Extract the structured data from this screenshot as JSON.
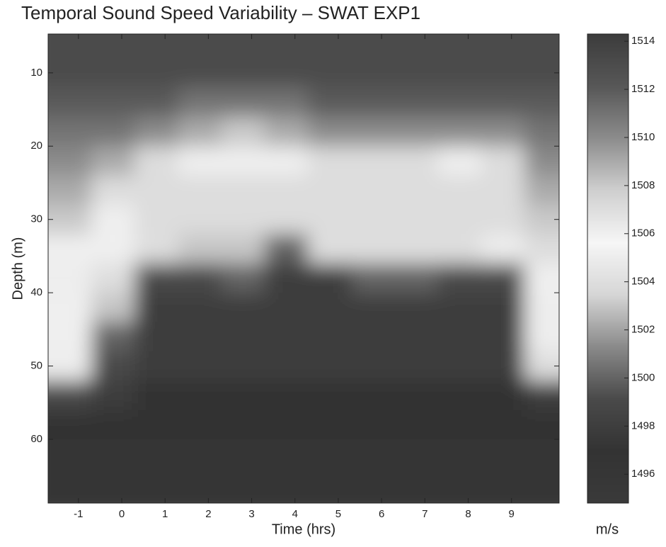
{
  "chart_data": {
    "type": "heatmap",
    "title": "Temporal Sound Speed Variability – SWAT EXP1",
    "x_label": "Time (hrs)",
    "y_label": "Depth (m)",
    "colorbar_label": "m/s",
    "x": [
      -1.2,
      -0.2,
      0.8,
      1.8,
      2.8,
      3.8,
      4.8,
      5.8,
      6.8,
      7.8,
      8.8,
      9.8
    ],
    "y": [
      6,
      10,
      14,
      18,
      22,
      26,
      30,
      34,
      38,
      42,
      46,
      50,
      54,
      58,
      62,
      66
    ],
    "z": [
      [
        1513,
        1513,
        1513,
        1513,
        1513,
        1513,
        1513,
        1513,
        1513,
        1513,
        1513,
        1513
      ],
      [
        1513,
        1513,
        1513,
        1513,
        1513,
        1513,
        1513,
        1513,
        1513,
        1513,
        1513,
        1513
      ],
      [
        1512,
        1512,
        1512,
        1511,
        1511,
        1511,
        1512,
        1512,
        1512,
        1512,
        1512,
        1512
      ],
      [
        1511,
        1511,
        1510,
        1509,
        1508,
        1509,
        1510,
        1510,
        1510,
        1510,
        1510,
        1511
      ],
      [
        1510,
        1509,
        1507,
        1506,
        1506,
        1506,
        1507,
        1507,
        1507,
        1506,
        1507,
        1510
      ],
      [
        1509,
        1507,
        1507,
        1507,
        1507,
        1507,
        1507,
        1507,
        1507,
        1507,
        1507,
        1509
      ],
      [
        1508,
        1506,
        1507,
        1507,
        1507,
        1507,
        1507,
        1507,
        1507,
        1507,
        1507,
        1508
      ],
      [
        1506,
        1506,
        1504,
        1503,
        1503,
        1500,
        1504,
        1504,
        1504,
        1504,
        1505,
        1507
      ],
      [
        1505,
        1504,
        1499,
        1499,
        1500,
        1498,
        1498,
        1500,
        1500,
        1499,
        1499,
        1506
      ],
      [
        1506,
        1503,
        1498,
        1498,
        1498,
        1498,
        1498,
        1498,
        1498,
        1498,
        1498,
        1505
      ],
      [
        1506,
        1500,
        1498,
        1498,
        1498,
        1498,
        1498,
        1498,
        1498,
        1498,
        1498,
        1505
      ],
      [
        1505,
        1499,
        1498,
        1498,
        1498,
        1498,
        1498,
        1498,
        1498,
        1498,
        1498,
        1504
      ],
      [
        1499,
        1498,
        1497,
        1497,
        1497,
        1497,
        1497,
        1497,
        1497,
        1497,
        1497,
        1498
      ],
      [
        1497,
        1497,
        1497,
        1497,
        1497,
        1497,
        1497,
        1497,
        1497,
        1497,
        1497,
        1497
      ],
      [
        1496,
        1496,
        1496,
        1496,
        1496,
        1496,
        1496,
        1496,
        1496,
        1496,
        1496,
        1496
      ],
      [
        1496,
        1496,
        1496,
        1496,
        1496,
        1496,
        1496,
        1496,
        1496,
        1496,
        1496,
        1496
      ]
    ],
    "xlim": [
      -1.7,
      10.1
    ],
    "xticks": [
      -1,
      0,
      1,
      2,
      3,
      4,
      5,
      6,
      7,
      8,
      9
    ],
    "ylim": [
      68.7,
      4.7
    ],
    "yticks": [
      10,
      20,
      30,
      40,
      50,
      60
    ],
    "clim": [
      1494.8,
      1514.3
    ],
    "cticks": [
      1496,
      1498,
      1500,
      1502,
      1504,
      1506,
      1508,
      1510,
      1512,
      1514
    ],
    "colormap": [
      "#3a3a3a",
      "#333333",
      "#4a4a4a",
      "#8a8a8a",
      "#d6d6d6",
      "#f6f6f6",
      "#cfcfcf",
      "#8c8c8c",
      "#575757",
      "#3c3c3c"
    ]
  }
}
